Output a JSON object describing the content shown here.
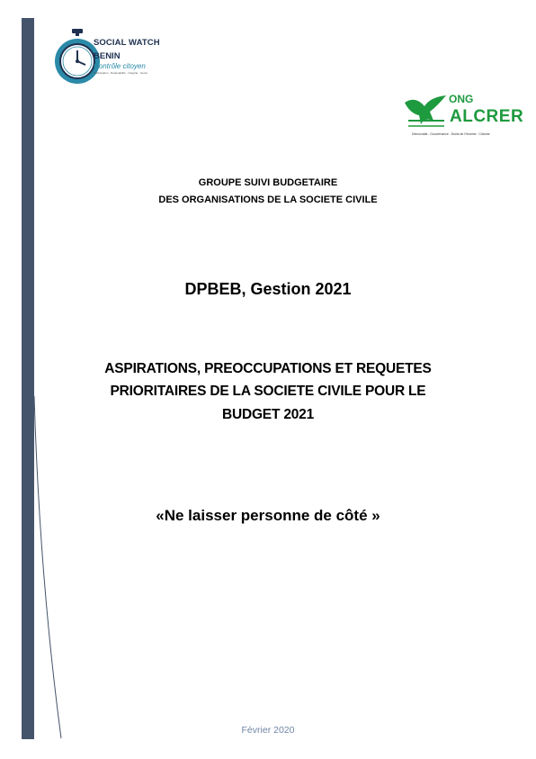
{
  "logos": {
    "social_watch": {
      "line1": "SOCIAL WATCH",
      "line2": "BENIN",
      "tagline": "Contrôle citoyen",
      "subtext": "Participation · Redevabilité · Intégrité · Genre"
    },
    "alcrer": {
      "prefix": "ONG",
      "name": "ALCRER",
      "tagline": "Démocratie - Gouvernance - Droits de l'Homme - Civisme"
    }
  },
  "document": {
    "group_line1": "GROUPE SUIVI BUDGETAIRE",
    "group_line2": "DES ORGANISATIONS DE LA SOCIETE CIVILE",
    "subtitle": "DPBEB, Gestion 2021",
    "title_line1": "ASPIRATIONS, PREOCCUPATIONS ET REQUETES",
    "title_line2": "PRIORITAIRES DE LA SOCIETE CIVILE POUR LE",
    "title_line3": "BUDGET 2021",
    "motto": "«Ne laisser personne de côté »",
    "date": "Février 2020"
  },
  "colors": {
    "side_bar": "#44546a",
    "alcrer_green": "#1e9a3f",
    "social_watch_navy": "#1f3150",
    "social_watch_teal": "#2a8aa8",
    "date_text": "#6f86a6"
  }
}
